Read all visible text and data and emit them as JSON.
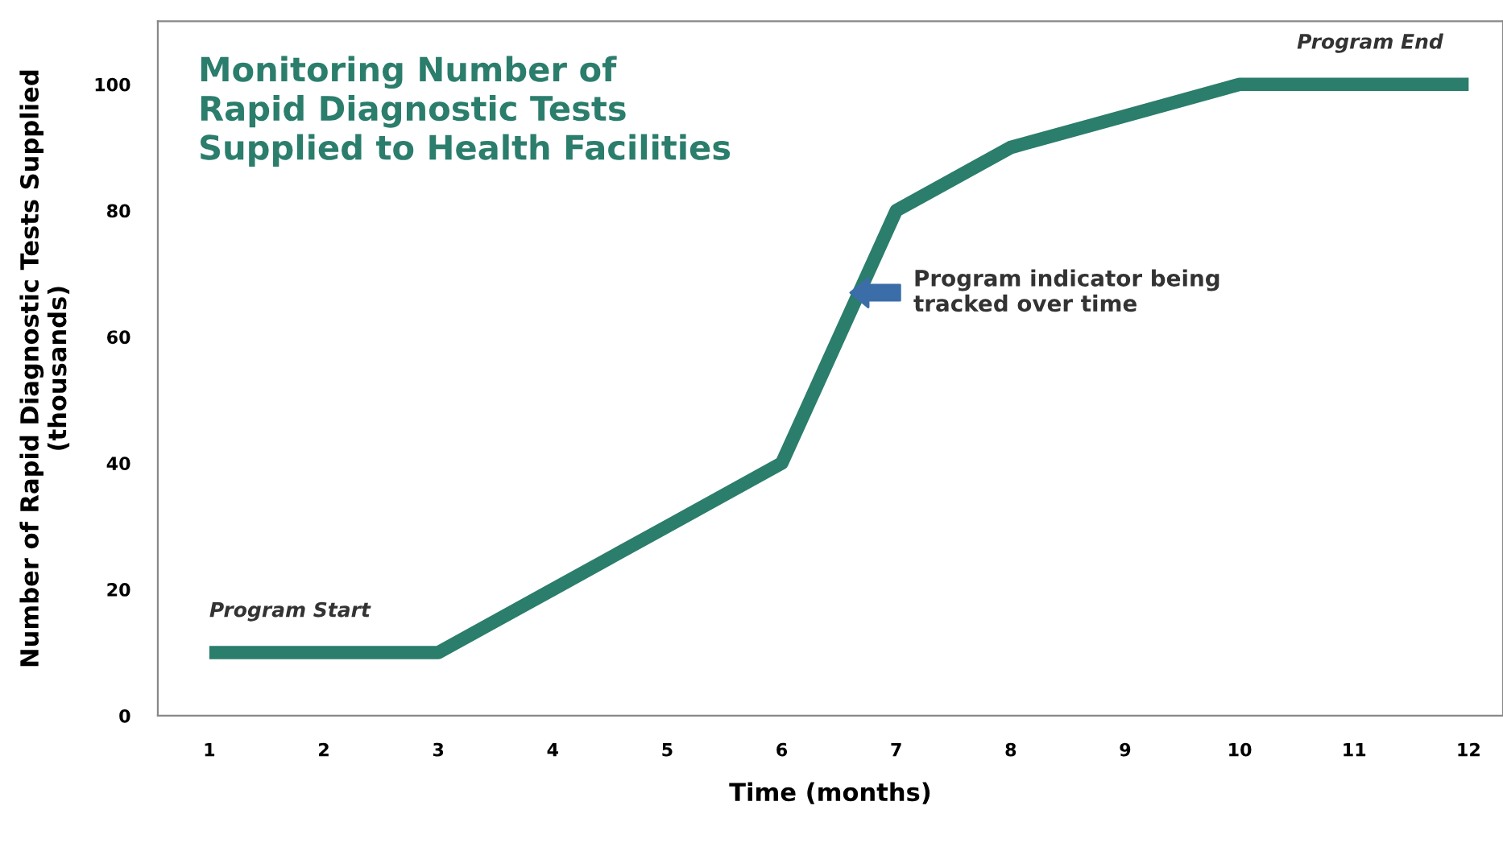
{
  "chart_data": {
    "type": "line",
    "title": "Monitoring Number of\nRapid Diagnostic Tests\nSupplied to Health Facilities",
    "xlabel": "Time (months)",
    "ylabel": "Number of Rapid Diagnostic Tests Supplied\n(thousands)",
    "x": [
      1,
      2,
      3,
      4,
      5,
      6,
      7,
      8,
      9,
      10,
      11,
      12
    ],
    "series": [
      {
        "color": "#2b7d6c",
        "values": [
          10,
          10,
          10,
          20,
          30,
          40,
          80,
          90,
          95,
          100,
          100,
          100
        ]
      }
    ],
    "xlim": [
      0.55,
      12.3
    ],
    "ylim": [
      0,
      110
    ],
    "xticks": [
      1,
      2,
      3,
      4,
      5,
      6,
      7,
      8,
      9,
      10,
      11,
      12
    ],
    "yticks": [
      0,
      20,
      40,
      60,
      80,
      100
    ],
    "grid": false,
    "legend": false,
    "marker": "none",
    "line_style": "solid",
    "annotations": [
      {
        "text": "Program Start",
        "x": 1,
        "y": 10
      },
      {
        "text": "Program End",
        "x": 10.5,
        "y": 100
      },
      {
        "text": "Program indicator being\ntracked over time",
        "x": 6.6,
        "y": 67
      }
    ]
  }
}
